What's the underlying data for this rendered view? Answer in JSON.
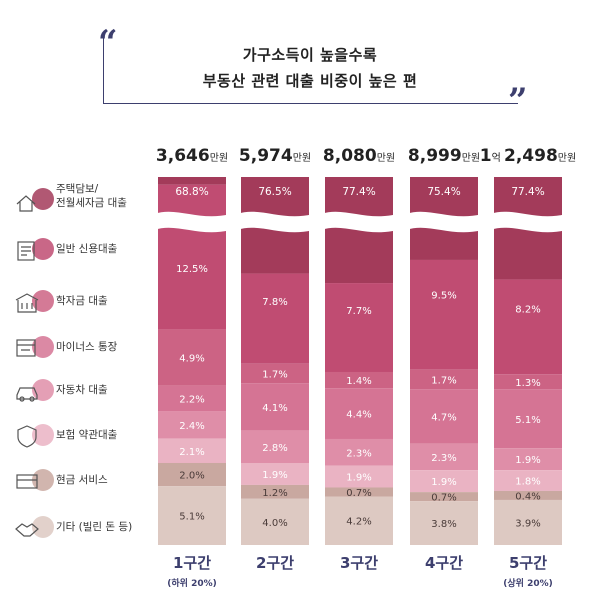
{
  "title": {
    "line1": "가구소득이 높을수록",
    "line2": "부동산 관련 대출 비중이  높은 편",
    "open_quote": "“",
    "close_quote": "”"
  },
  "colors": {
    "quote": "#3d3f6e",
    "segments": [
      "#a33b5a",
      "#c04c72",
      "#cc6384",
      "#d57494",
      "#df8ea8",
      "#eab3c3",
      "#c9a8a0",
      "#ddc9c2"
    ]
  },
  "legend": [
    {
      "label": "주택담보/",
      "label2": "전월세자금 대출",
      "icon": "house-key-icon"
    },
    {
      "label": "일반 신용대출",
      "icon": "credit-document-icon"
    },
    {
      "label": "학자금 대출",
      "icon": "school-building-icon"
    },
    {
      "label": "마이너스 통장",
      "icon": "bankbook-icon"
    },
    {
      "label": "자동차 대출",
      "icon": "car-icon"
    },
    {
      "label": "보험 약관대출",
      "icon": "insurance-shield-icon"
    },
    {
      "label": "현금 서비스",
      "icon": "cash-card-icon"
    },
    {
      "label": "기타 (빌린 돈 등)",
      "icon": "handshake-icon"
    }
  ],
  "chart_data": {
    "type": "bar",
    "stacked": true,
    "orientation": "vertical",
    "categories": [
      "1구간",
      "2구간",
      "3구간",
      "4구간",
      "5구간"
    ],
    "category_notes": [
      "(하위 20%)",
      "",
      "",
      "",
      "(상위 20%)"
    ],
    "totals": [
      {
        "value": "3,646",
        "unit": "만원",
        "prefix": "",
        "prefix_unit": ""
      },
      {
        "value": "5,974",
        "unit": "만원",
        "prefix": "",
        "prefix_unit": ""
      },
      {
        "value": "8,080",
        "unit": "만원",
        "prefix": "",
        "prefix_unit": ""
      },
      {
        "value": "8,999",
        "unit": "만원",
        "prefix": "",
        "prefix_unit": ""
      },
      {
        "value": "2,498",
        "unit": "만원",
        "prefix": "1",
        "prefix_unit": "억"
      }
    ],
    "series": [
      {
        "name": "주택담보/전월세자금 대출",
        "values": [
          68.8,
          76.5,
          77.4,
          75.4,
          77.4
        ]
      },
      {
        "name": "일반 신용대출",
        "values": [
          12.5,
          7.8,
          7.7,
          9.5,
          8.2
        ]
      },
      {
        "name": "학자금 대출",
        "values": [
          4.9,
          1.7,
          1.4,
          1.7,
          1.3
        ]
      },
      {
        "name": "마이너스 통장",
        "values": [
          2.2,
          4.1,
          4.4,
          4.7,
          5.1
        ]
      },
      {
        "name": "자동차 대출",
        "values": [
          2.4,
          2.8,
          2.3,
          2.3,
          1.9
        ]
      },
      {
        "name": "보험 약관대출",
        "values": [
          2.1,
          1.9,
          1.9,
          1.9,
          1.8
        ]
      },
      {
        "name": "현금 서비스",
        "values": [
          2.0,
          1.2,
          0.7,
          0.7,
          0.4
        ]
      },
      {
        "name": "기타 (빌린 돈 등)",
        "values": [
          5.1,
          4.0,
          4.2,
          3.8,
          3.9
        ]
      }
    ],
    "value_suffix": "%",
    "axis_break": true
  }
}
